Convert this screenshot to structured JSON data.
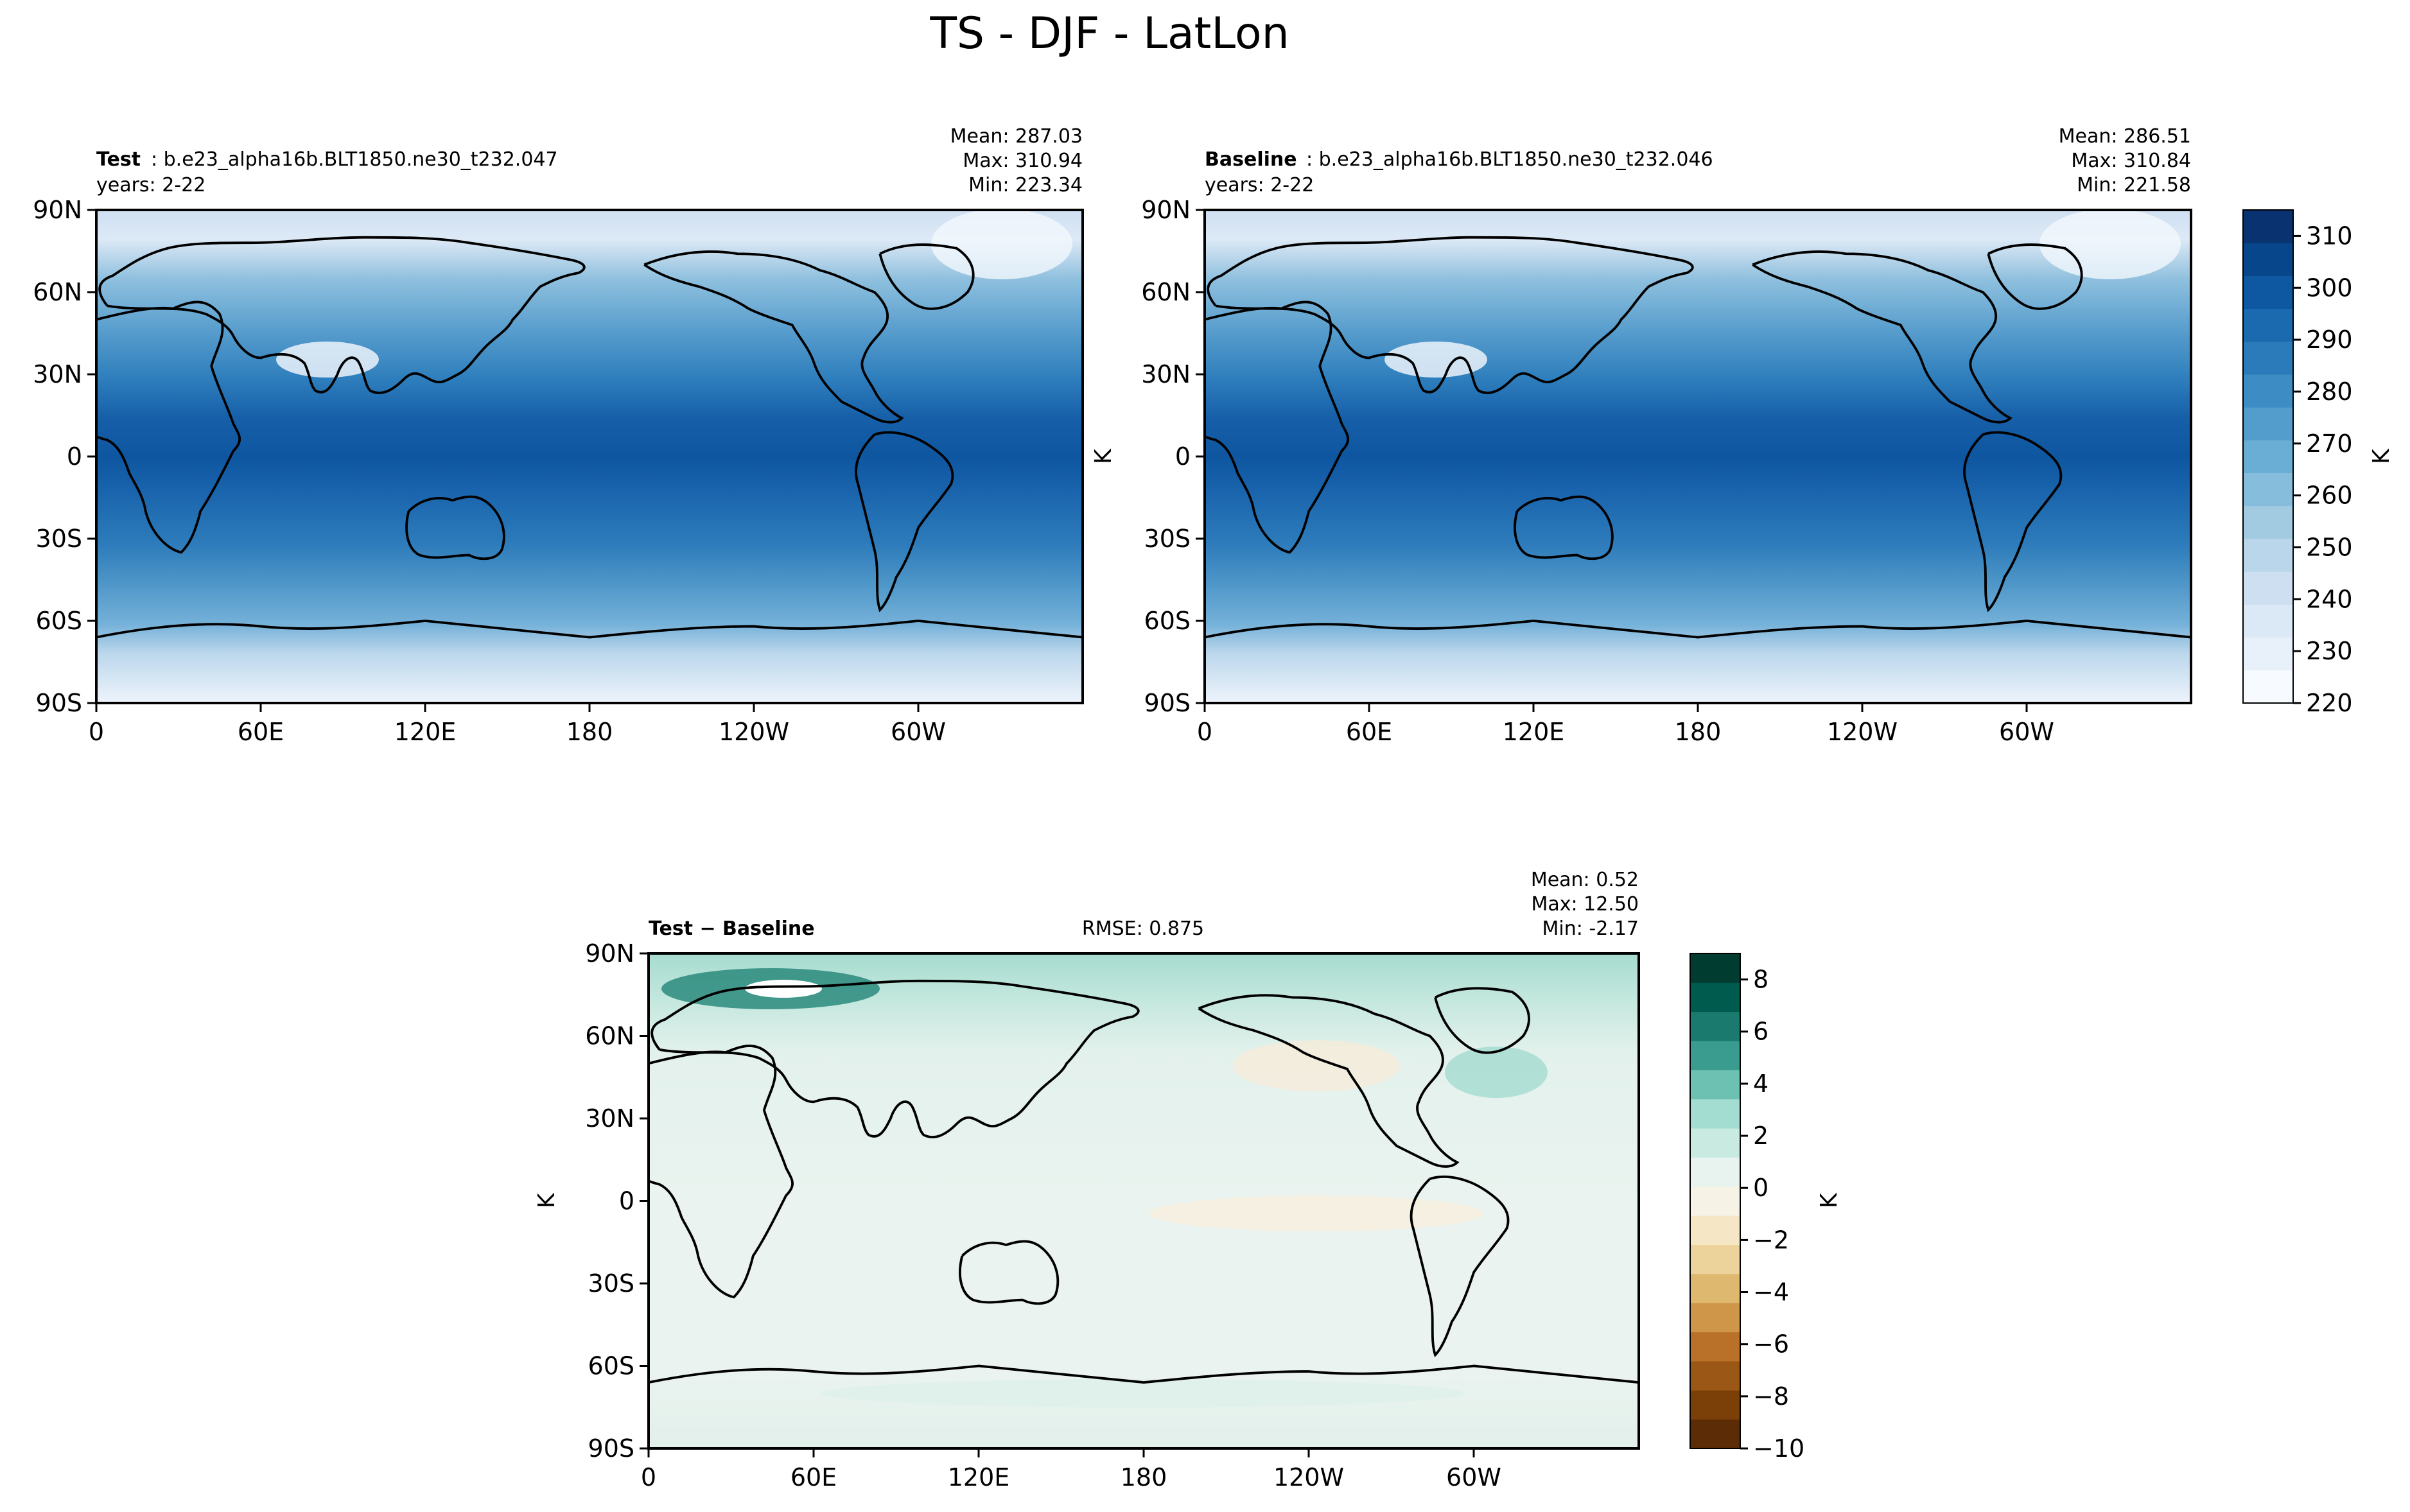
{
  "figure_title": "TS - DJF - LatLon",
  "colors": {
    "blues": [
      "#f7fbff",
      "#e8f1fa",
      "#dbe9f6",
      "#cddff1",
      "#bad6eb",
      "#a2cbe2",
      "#87bddc",
      "#6aaed6",
      "#529dcc",
      "#3d8dc4",
      "#2b7bba",
      "#1b69af",
      "#0d58a1",
      "#08468b",
      "#083370"
    ],
    "diverging": [
      "#5b2c06",
      "#7a4008",
      "#9a5715",
      "#b97129",
      "#cf9548",
      "#dfb86f",
      "#ebd39b",
      "#f5e7c5",
      "#f6f2e6",
      "#e8f3ef",
      "#c9eae1",
      "#a3dcd0",
      "#6cc1b2",
      "#3a9c8f",
      "#197a6d",
      "#005b4f",
      "#003c30"
    ],
    "land_outline": "#000000"
  },
  "chart_data": [
    {
      "type": "heatmap",
      "panel": "test",
      "title_bold": "Test",
      "title_rest": ": b.e23_alpha16b.BLT1850.ne30_t232.047",
      "subtitle": "years: 2-22",
      "stats": [
        "Mean: 287.03",
        "Max: 310.94",
        "Min: 223.34"
      ],
      "ylabel": "",
      "xticks": [
        "0",
        "60E",
        "120E",
        "180",
        "120W",
        "60W"
      ],
      "yticks": [
        "90N",
        "60N",
        "30N",
        "0",
        "30S",
        "60S",
        "90S"
      ],
      "xlim": [
        0,
        360
      ],
      "ylim": [
        -90,
        90
      ],
      "mean": 287.03,
      "max": 310.94,
      "min": 223.34
    },
    {
      "type": "heatmap",
      "panel": "baseline",
      "title_bold": "Baseline",
      "title_rest": ": b.e23_alpha16b.BLT1850.ne30_t232.046",
      "subtitle": "years: 2-22",
      "stats": [
        "Mean: 286.51",
        "Max: 310.84",
        "Min: 221.58"
      ],
      "ylabel": "K",
      "xticks": [
        "0",
        "60E",
        "120E",
        "180",
        "120W",
        "60W"
      ],
      "yticks": [
        "90N",
        "60N",
        "30N",
        "0",
        "30S",
        "60S",
        "90S"
      ],
      "xlim": [
        0,
        360
      ],
      "ylim": [
        -90,
        90
      ],
      "mean": 286.51,
      "max": 310.84,
      "min": 221.58,
      "colorbar": {
        "ticks": [
          "310",
          "300",
          "290",
          "280",
          "270",
          "260",
          "250",
          "240",
          "230",
          "220"
        ],
        "tick_values": [
          310,
          300,
          290,
          280,
          270,
          260,
          250,
          240,
          230,
          220
        ],
        "range": [
          220,
          315
        ],
        "label": "K"
      }
    },
    {
      "type": "heatmap",
      "panel": "difference",
      "title_bold": "Test − Baseline",
      "rmse": "RMSE: 0.875",
      "stats": [
        "Mean:  0.52",
        "Max: 12.50",
        "Min: -2.17"
      ],
      "ylabel": "K",
      "xticks": [
        "0",
        "60E",
        "120E",
        "180",
        "120W",
        "60W"
      ],
      "yticks": [
        "90N",
        "60N",
        "30N",
        "0",
        "30S",
        "60S",
        "90S"
      ],
      "xlim": [
        0,
        360
      ],
      "ylim": [
        -90,
        90
      ],
      "mean": 0.52,
      "max": 12.5,
      "min": -2.17,
      "colorbar": {
        "ticks": [
          "8",
          "6",
          "4",
          "2",
          "0",
          "−2",
          "−4",
          "−6",
          "−8",
          "−10"
        ],
        "tick_values": [
          8,
          6,
          4,
          2,
          0,
          -2,
          -4,
          -6,
          -8,
          -10
        ],
        "range": [
          -10,
          9
        ],
        "label": "K"
      }
    }
  ]
}
